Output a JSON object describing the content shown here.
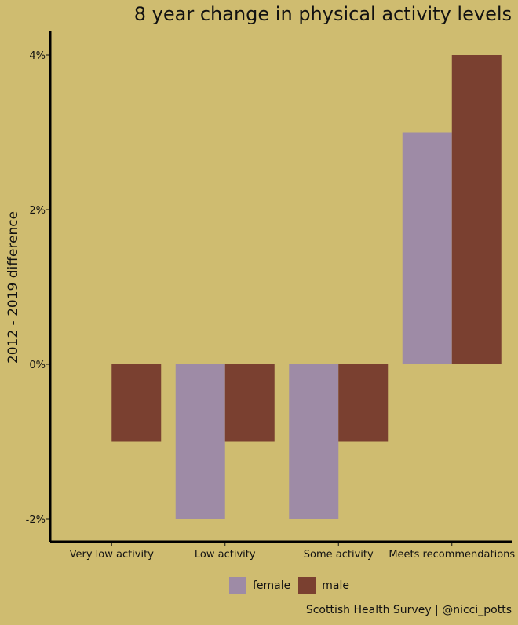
{
  "title": "8 year change in physical activity levels",
  "caption": "Scottish Health Survey | @nicci_potts",
  "colors": {
    "background": "#cfbc70",
    "female": "#9e8ba6",
    "male": "#7a4030"
  },
  "chart_data": {
    "type": "bar",
    "title": "8 year change in physical activity levels",
    "xlabel": "",
    "ylabel": "2012 - 2019 difference",
    "categories": [
      "Very low activity",
      "Low activity",
      "Some activity",
      "Meets recommendations"
    ],
    "series": [
      {
        "name": "female",
        "color": "#9e8ba6",
        "values": [
          0,
          -2,
          -2,
          3
        ]
      },
      {
        "name": "male",
        "color": "#7a4030",
        "values": [
          -1,
          -1,
          -1,
          4
        ]
      }
    ],
    "ylim": [
      -2.3,
      4.3
    ],
    "yticks": [
      -2,
      0,
      2,
      4
    ],
    "ytick_labels": [
      "-2%",
      "0%",
      "2%",
      "4%"
    ],
    "grid": false,
    "legend_position": "bottom"
  }
}
